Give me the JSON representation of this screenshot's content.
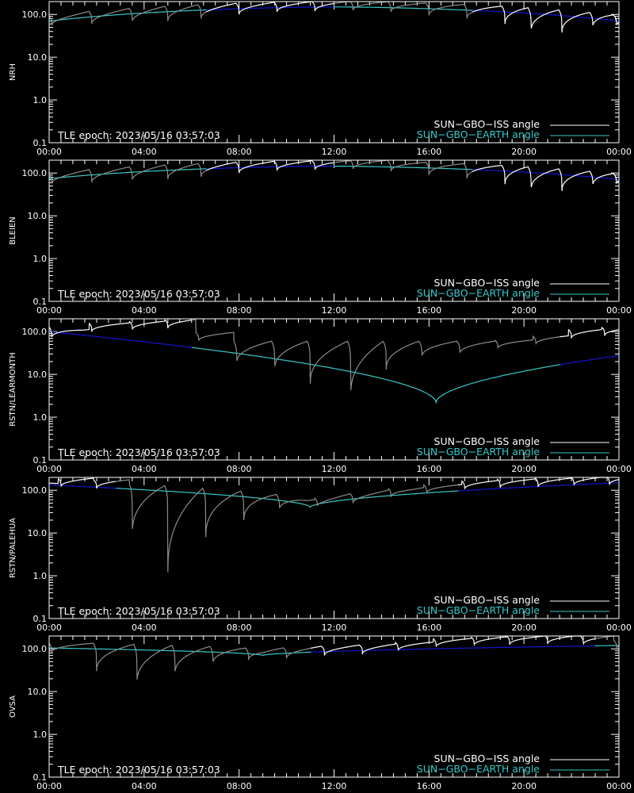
{
  "colors": {
    "background": "#000000",
    "axes": "#ffffff",
    "iss": "#ffffff",
    "iss_dim": "#8c8c8c",
    "earth_blue": "#1414d2",
    "earth_cyan": "#37c8c8"
  },
  "chart_data": [
    {
      "type": "line",
      "ylabel": "NRH",
      "yscale": "log",
      "ylim": [
        0.1,
        200
      ],
      "xlim_hours": [
        0,
        24
      ],
      "xticks": [
        "00:00",
        "04:00",
        "08:00",
        "12:00",
        "16:00",
        "20:00",
        "00:00"
      ],
      "yticks": [
        "0.1",
        "1.0",
        "10.0",
        "100.0"
      ],
      "annotation": "TLE epoch: 2023/05/16 03:57:03",
      "legend": [
        "SUN−GBO−ISS angle",
        "SUN−GBO−EARTH angle"
      ],
      "legend_position": "bottom-right",
      "earth": {
        "min_hour": 12.0,
        "min_value": 150,
        "end_value": 70,
        "kind": "max"
      },
      "iss_minima": [
        [
          0.1,
          55
        ],
        [
          1.8,
          60
        ],
        [
          3.5,
          65
        ],
        [
          5.0,
          70
        ],
        [
          6.4,
          80
        ],
        [
          8.0,
          100
        ],
        [
          9.6,
          115
        ],
        [
          11.2,
          120
        ],
        [
          12.8,
          125
        ],
        [
          14.4,
          115
        ],
        [
          16.0,
          95
        ],
        [
          17.6,
          80
        ],
        [
          19.2,
          60
        ],
        [
          20.3,
          40
        ],
        [
          21.6,
          38
        ],
        [
          22.9,
          50
        ],
        [
          23.9,
          55
        ]
      ],
      "sunlit_hours": [
        [
          0.0,
          6.6
        ],
        [
          12.0,
          17.8
        ]
      ]
    },
    {
      "type": "line",
      "ylabel": "BLEIEN",
      "yscale": "log",
      "ylim": [
        0.1,
        200
      ],
      "xlim_hours": [
        0,
        24
      ],
      "xticks": [
        "00:00",
        "04:00",
        "08:00",
        "12:00",
        "16:00",
        "20:00",
        "00:00"
      ],
      "yticks": [
        "0.1",
        "1.0",
        "10.0",
        "100.0"
      ],
      "annotation": "TLE epoch: 2023/05/16 03:57:03",
      "legend": [
        "SUN−GBO−ISS angle",
        "SUN−GBO−EARTH angle"
      ],
      "legend_position": "bottom-right",
      "earth": {
        "min_hour": 11.8,
        "min_value": 145,
        "end_value": 70,
        "kind": "max"
      },
      "iss_minima": [
        [
          0.1,
          55
        ],
        [
          1.8,
          60
        ],
        [
          3.5,
          65
        ],
        [
          5.0,
          72
        ],
        [
          6.4,
          82
        ],
        [
          8.0,
          100
        ],
        [
          9.6,
          115
        ],
        [
          11.2,
          120
        ],
        [
          12.8,
          125
        ],
        [
          14.4,
          110
        ],
        [
          16.0,
          90
        ],
        [
          17.6,
          75
        ],
        [
          19.2,
          55
        ],
        [
          20.3,
          40
        ],
        [
          21.6,
          38
        ],
        [
          22.9,
          50
        ],
        [
          23.9,
          55
        ]
      ],
      "sunlit_hours": [
        [
          0.0,
          6.6
        ],
        [
          12.0,
          17.8
        ]
      ]
    },
    {
      "type": "line",
      "ylabel": "RSTN/LEARMONTH",
      "yscale": "log",
      "ylim": [
        0.1,
        200
      ],
      "xlim_hours": [
        0,
        24
      ],
      "xticks": [
        "00:00",
        "04:00",
        "08:00",
        "12:00",
        "16:00",
        "20:00",
        "00:00"
      ],
      "yticks": [
        "0.1",
        "1.0",
        "10.0",
        "100.0"
      ],
      "annotation": "TLE epoch: 2023/05/16 03:57:03",
      "legend": [
        "SUN−GBO−ISS angle",
        "SUN−GBO−EARTH angle"
      ],
      "legend_position": "bottom-right",
      "earth": {
        "min_hour": 16.3,
        "min_value": 2.2,
        "end_value": 100,
        "kind": "min"
      },
      "iss_minima": [
        [
          0.1,
          70
        ],
        [
          1.8,
          100
        ],
        [
          3.5,
          110
        ],
        [
          5.0,
          120
        ],
        [
          6.3,
          60
        ],
        [
          7.9,
          18
        ],
        [
          9.5,
          13
        ],
        [
          11.0,
          6
        ],
        [
          12.7,
          3
        ],
        [
          14.2,
          13
        ],
        [
          15.7,
          25
        ],
        [
          17.3,
          30
        ],
        [
          18.9,
          40
        ],
        [
          20.5,
          50
        ],
        [
          22.0,
          70
        ],
        [
          23.4,
          80
        ]
      ],
      "sunlit_hours": [
        [
          6.0,
          21.5
        ]
      ]
    },
    {
      "type": "line",
      "ylabel": "RSTN/PALEHUA",
      "yscale": "log",
      "ylim": [
        0.1,
        200
      ],
      "xlim_hours": [
        0,
        24
      ],
      "xticks": [
        "00:00",
        "04:00",
        "08:00",
        "12:00",
        "16:00",
        "20:00",
        "00:00"
      ],
      "yticks": [
        "0.1",
        "1.0",
        "10.0",
        "100.0"
      ],
      "annotation": "TLE epoch: 2023/05/16 03:57:03",
      "legend": [
        "SUN−GBO−ISS angle",
        "SUN−GBO−EARTH angle"
      ],
      "legend_position": "bottom-right",
      "earth": {
        "min_hour": 11.0,
        "min_value": 40,
        "end_value": 150,
        "kind": "min"
      },
      "iss_minima": [
        [
          0.5,
          120
        ],
        [
          2.0,
          110
        ],
        [
          3.5,
          9
        ],
        [
          5.0,
          1.2
        ],
        [
          6.6,
          8
        ],
        [
          8.2,
          20
        ],
        [
          9.7,
          35
        ],
        [
          11.3,
          42
        ],
        [
          12.8,
          50
        ],
        [
          14.4,
          70
        ],
        [
          15.9,
          85
        ],
        [
          17.5,
          105
        ],
        [
          19.0,
          115
        ],
        [
          20.6,
          120
        ],
        [
          22.1,
          130
        ],
        [
          23.6,
          135
        ]
      ],
      "sunlit_hours": [
        [
          2.8,
          17.2
        ]
      ]
    },
    {
      "type": "line",
      "ylabel": "OVSA",
      "yscale": "log",
      "ylim": [
        0.1,
        200
      ],
      "xlim_hours": [
        0,
        24
      ],
      "xticks": [
        "00:00",
        "04:00",
        "08:00",
        "12:00",
        "16:00",
        "20:00",
        "00:00"
      ],
      "yticks": [
        "0.1",
        "1.0",
        "10.0",
        "100.0"
      ],
      "annotation": "TLE epoch: 2023/05/16 03:57:03",
      "legend": [
        "SUN−GBO−ISS angle",
        "SUN−GBO−EARTH angle"
      ],
      "legend_position": "bottom-right",
      "earth": {
        "min_hour": 9.0,
        "min_value": 70,
        "end_value": 120,
        "kind": "min"
      },
      "iss_minima": [
        [
          0.1,
          80
        ],
        [
          2.0,
          30
        ],
        [
          3.7,
          15
        ],
        [
          5.3,
          25
        ],
        [
          6.9,
          45
        ],
        [
          8.4,
          55
        ],
        [
          10.0,
          60
        ],
        [
          11.6,
          70
        ],
        [
          13.2,
          75
        ],
        [
          14.7,
          90
        ],
        [
          16.3,
          110
        ],
        [
          17.9,
          120
        ],
        [
          19.4,
          125
        ],
        [
          21.0,
          130
        ],
        [
          22.5,
          125
        ],
        [
          23.9,
          100
        ]
      ],
      "sunlit_hours": [
        [
          0.0,
          11.0
        ],
        [
          23.0,
          24.0
        ]
      ]
    }
  ]
}
